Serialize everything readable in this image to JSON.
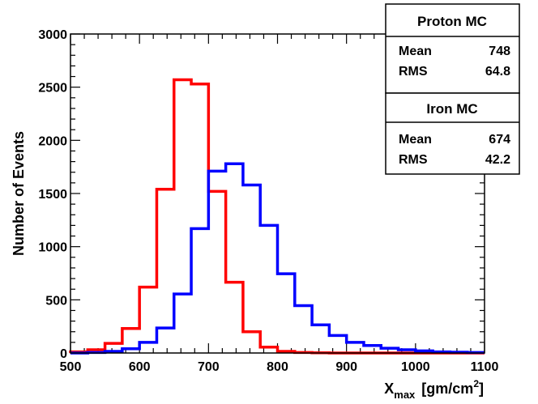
{
  "chart_data": {
    "type": "histogram",
    "xlabel_main": "X",
    "xlabel_sub": "max",
    "xlabel_unit_pre": "[gm/cm",
    "xlabel_unit_sup": "2",
    "xlabel_unit_post": "]",
    "ylabel": "Number of Events",
    "xlim": [
      500,
      1100
    ],
    "ylim": [
      0,
      3000
    ],
    "bin_width": 25,
    "bin_edges_start": 500,
    "x_ticks": [
      "500",
      "600",
      "700",
      "800",
      "900",
      "1000",
      "1100"
    ],
    "y_ticks": [
      "0",
      "500",
      "1000",
      "1500",
      "2000",
      "2500",
      "3000"
    ],
    "series": [
      {
        "name": "Iron MC",
        "color": "#ff0000",
        "values": [
          10,
          30,
          90,
          230,
          620,
          1540,
          2570,
          2530,
          1520,
          665,
          200,
          55,
          15,
          5,
          2,
          0,
          0,
          0,
          0,
          0,
          0,
          0,
          0,
          0
        ]
      },
      {
        "name": "Proton MC",
        "color": "#0000ff",
        "values": [
          0,
          5,
          15,
          40,
          100,
          235,
          555,
          1170,
          1710,
          1780,
          1580,
          1200,
          745,
          445,
          265,
          165,
          100,
          70,
          45,
          30,
          20,
          10,
          8,
          5
        ]
      }
    ],
    "stats_boxes": [
      {
        "title": "Proton MC",
        "mean_label": "Mean",
        "mean": "748",
        "rms_label": "RMS",
        "rms": "64.8"
      },
      {
        "title": "Iron MC",
        "mean_label": "Mean",
        "mean": "674",
        "rms_label": "RMS",
        "rms": "42.2"
      }
    ]
  }
}
